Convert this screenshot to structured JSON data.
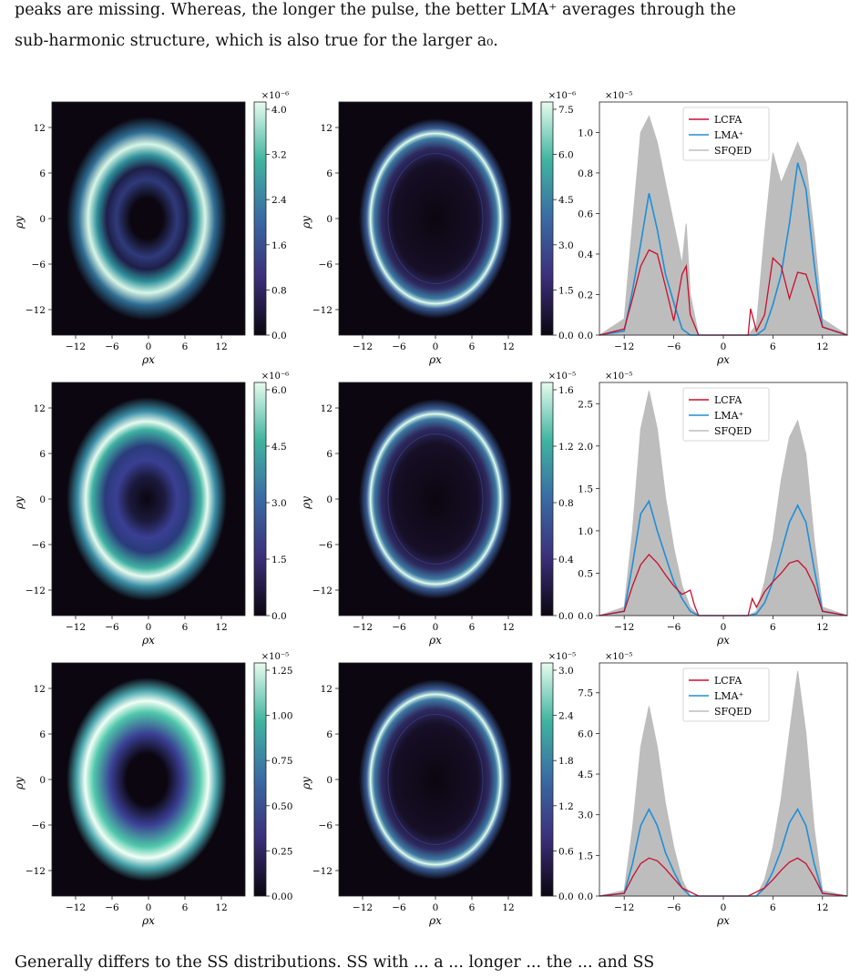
{
  "text": {
    "top_line1": "peaks are missing. Whereas, the longer the pulse, the better LMA⁺ averages through the",
    "top_line2": "sub-harmonic structure, which is also true for the larger a₀.",
    "bottom_line": "Generally differs to the SS distributions. SS with ... a ... longer ... the ... and SS"
  },
  "colors": {
    "lcfa": "#c8102e",
    "lma": "#1f8fd6",
    "sfqed": "#bdbdbd",
    "heat_low": "#0b0610",
    "heat_mid": "#4a3f9a",
    "heat_high": "#e6fbee"
  },
  "figure": {
    "heatmap_axes": {
      "xlabel": "ρx",
      "ylabel": "ρy",
      "xticks": [
        "−12",
        "−6",
        "0",
        "6",
        "12"
      ],
      "yticks": [
        "12",
        "6",
        "0",
        "−6",
        "−12"
      ]
    },
    "rows": [
      {
        "left": {
          "scale": "×10⁻⁶",
          "cbar_ticks": [
            "4.0",
            "3.2",
            "2.4",
            "1.6",
            "0.8",
            "0.0"
          ]
        },
        "mid": {
          "scale": "×10⁻⁶",
          "cbar_ticks": [
            "7.5",
            "6.0",
            "4.5",
            "3.0",
            "1.5",
            "0.0"
          ]
        },
        "right": {
          "scale": "×10⁻⁵",
          "yticks": [
            "1.0",
            "0.8",
            "0.6",
            "0.4",
            "0.2",
            "0.0"
          ]
        }
      },
      {
        "left": {
          "scale": "×10⁻⁶",
          "cbar_ticks": [
            "6.0",
            "4.5",
            "3.0",
            "1.5",
            "0.0"
          ]
        },
        "mid": {
          "scale": "×10⁻⁵",
          "cbar_ticks": [
            "1.6",
            "1.2",
            "0.8",
            "0.4",
            "0.0"
          ]
        },
        "right": {
          "scale": "×10⁻⁵",
          "yticks": [
            "2.5",
            "2.0",
            "1.5",
            "1.0",
            "0.5",
            "0.0"
          ]
        }
      },
      {
        "left": {
          "scale": "×10⁻⁵",
          "cbar_ticks": [
            "1.25",
            "1.00",
            "0.75",
            "0.50",
            "0.25",
            "0.00"
          ]
        },
        "mid": {
          "scale": "×10⁻⁵",
          "cbar_ticks": [
            "3.0",
            "2.4",
            "1.8",
            "1.2",
            "0.6",
            "0.0"
          ]
        },
        "right": {
          "scale": "×10⁻⁵",
          "yticks": [
            "7.5",
            "6.0",
            "4.5",
            "3.0",
            "1.5",
            "0.0"
          ]
        }
      }
    ]
  },
  "chart_data": [
    {
      "type": "line",
      "xlabel": "ρx",
      "ylabel": "",
      "x_ticks": [
        "−12",
        "−6",
        "0",
        "6",
        "12"
      ],
      "xlim": [
        -15,
        15
      ],
      "ylim": [
        0,
        1.15
      ],
      "y_scale_label": "×10⁻⁵",
      "legend_position": "top-center",
      "series": [
        {
          "name": "LCFA",
          "x": [
            -15,
            -12,
            -11,
            -10,
            -9,
            -8,
            -7,
            -6,
            -5,
            -4.5,
            -4,
            -3,
            0,
            3,
            3.3,
            4,
            5,
            6,
            7,
            8,
            9,
            10,
            11,
            12,
            15
          ],
          "y": [
            0,
            0.03,
            0.18,
            0.34,
            0.42,
            0.4,
            0.24,
            0.07,
            0.3,
            0.34,
            0.1,
            0.0,
            0.0,
            0.0,
            0.13,
            0.02,
            0.1,
            0.38,
            0.34,
            0.18,
            0.31,
            0.3,
            0.18,
            0.04,
            0.0
          ]
        },
        {
          "name": "LMA⁺",
          "x": [
            -15,
            -12,
            -11,
            -10,
            -9,
            -8,
            -7,
            -6,
            -5,
            -4,
            -3,
            0,
            3,
            4,
            5,
            6,
            7,
            8,
            9,
            10,
            11,
            12,
            15
          ],
          "y": [
            0,
            0.02,
            0.22,
            0.45,
            0.7,
            0.52,
            0.3,
            0.16,
            0.03,
            0.0,
            0.0,
            0.0,
            0.0,
            0.0,
            0.03,
            0.15,
            0.3,
            0.55,
            0.85,
            0.72,
            0.35,
            0.04,
            0.0
          ]
        },
        {
          "name": "SFQED",
          "x": [
            -15,
            -12,
            -11,
            -10,
            -9,
            -8,
            -7,
            -6,
            -5,
            -4.5,
            -4,
            -3,
            0,
            3,
            4,
            5,
            6,
            7,
            8,
            9,
            10,
            11,
            12,
            15
          ],
          "y": [
            0,
            0.08,
            0.55,
            1.0,
            1.08,
            0.95,
            0.75,
            0.55,
            0.35,
            0.55,
            0.2,
            0.0,
            0.0,
            0.0,
            0.05,
            0.5,
            0.9,
            0.75,
            0.85,
            0.95,
            0.85,
            0.5,
            0.08,
            0
          ]
        }
      ]
    },
    {
      "type": "line",
      "xlabel": "ρx",
      "ylabel": "",
      "x_ticks": [
        "−12",
        "−6",
        "0",
        "6",
        "12"
      ],
      "xlim": [
        -15,
        15
      ],
      "ylim": [
        0,
        2.75
      ],
      "y_scale_label": "×10⁻⁵",
      "legend_position": "top-center",
      "series": [
        {
          "name": "LCFA",
          "x": [
            -15,
            -12,
            -11,
            -10,
            -9,
            -8,
            -7,
            -6,
            -5,
            -4,
            -3.5,
            -3,
            0,
            3,
            3.5,
            4,
            5,
            6,
            7,
            8,
            9,
            10,
            11,
            12,
            15
          ],
          "y": [
            0,
            0.05,
            0.35,
            0.6,
            0.72,
            0.62,
            0.48,
            0.35,
            0.25,
            0.3,
            0.12,
            0.0,
            0.0,
            0.0,
            0.2,
            0.1,
            0.28,
            0.4,
            0.5,
            0.62,
            0.65,
            0.55,
            0.35,
            0.05,
            0
          ]
        },
        {
          "name": "LMA⁺",
          "x": [
            -15,
            -12,
            -11,
            -10,
            -9,
            -8,
            -7,
            -6,
            -5,
            -4,
            -3,
            0,
            3,
            4,
            5,
            6,
            7,
            8,
            9,
            10,
            11,
            12,
            15
          ],
          "y": [
            0,
            0.05,
            0.6,
            1.2,
            1.35,
            1.0,
            0.7,
            0.4,
            0.2,
            0.05,
            0.0,
            0.0,
            0.0,
            0.02,
            0.15,
            0.4,
            0.75,
            1.1,
            1.3,
            1.1,
            0.55,
            0.05,
            0
          ]
        },
        {
          "name": "SFQED",
          "x": [
            -15,
            -12,
            -11,
            -10,
            -9,
            -8,
            -7,
            -6,
            -5,
            -4,
            -3,
            0,
            3,
            4,
            5,
            6,
            7,
            8,
            9,
            10,
            11,
            12,
            15
          ],
          "y": [
            0,
            0.1,
            1.0,
            2.2,
            2.65,
            2.2,
            1.4,
            0.8,
            0.35,
            0.1,
            0.0,
            0.0,
            0.0,
            0.05,
            0.4,
            0.9,
            1.6,
            2.1,
            2.3,
            1.9,
            0.9,
            0.1,
            0
          ]
        }
      ]
    },
    {
      "type": "line",
      "xlabel": "ρx",
      "ylabel": "",
      "x_ticks": [
        "−12",
        "−6",
        "0",
        "6",
        "12"
      ],
      "xlim": [
        -15,
        15
      ],
      "ylim": [
        0,
        8.6
      ],
      "y_scale_label": "×10⁻⁵",
      "legend_position": "top-center",
      "series": [
        {
          "name": "LCFA",
          "x": [
            -15,
            -12,
            -11,
            -10,
            -9,
            -8,
            -7,
            -6,
            -5,
            -3,
            0,
            3,
            5,
            6,
            7,
            8,
            9,
            10,
            11,
            12,
            15
          ],
          "y": [
            0,
            0.1,
            0.7,
            1.2,
            1.4,
            1.3,
            1.0,
            0.65,
            0.3,
            0.0,
            0.0,
            0.0,
            0.3,
            0.6,
            0.95,
            1.25,
            1.4,
            1.2,
            0.7,
            0.1,
            0
          ]
        },
        {
          "name": "LMA⁺",
          "x": [
            -15,
            -12,
            -11,
            -10,
            -9,
            -8,
            -7,
            -6,
            -5,
            -4,
            0,
            4,
            5,
            6,
            7,
            8,
            9,
            10,
            11,
            12,
            15
          ],
          "y": [
            0,
            0.1,
            1.2,
            2.6,
            3.2,
            2.6,
            1.6,
            0.9,
            0.3,
            0.0,
            0.0,
            0.0,
            0.3,
            0.9,
            1.7,
            2.7,
            3.2,
            2.6,
            1.2,
            0.1,
            0
          ]
        },
        {
          "name": "SFQED",
          "x": [
            -15,
            -12,
            -11,
            -10,
            -9,
            -8,
            -7,
            -6,
            -5,
            -4,
            0,
            4,
            5,
            6,
            7,
            8,
            9,
            10,
            11,
            12,
            15
          ],
          "y": [
            0,
            0.2,
            2.5,
            5.5,
            7.0,
            5.5,
            3.4,
            1.8,
            0.6,
            0.0,
            0.0,
            0.0,
            0.6,
            1.8,
            3.6,
            6.0,
            8.3,
            6.0,
            2.5,
            0.2,
            0
          ]
        }
      ]
    }
  ]
}
